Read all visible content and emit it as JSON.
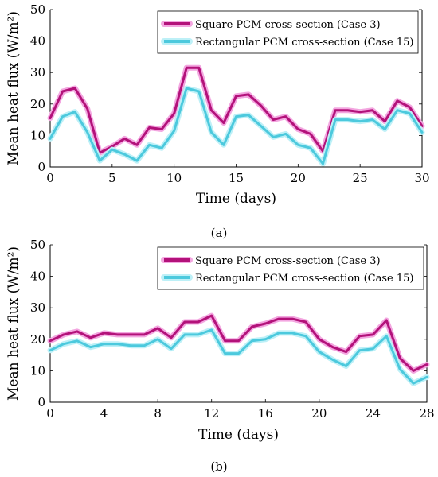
{
  "chart_data": [
    {
      "type": "line",
      "caption": "(a)",
      "xlabel": "Time (days)",
      "ylabel": "Mean heat flux (W/m²)",
      "xlim": [
        0,
        30
      ],
      "ylim": [
        0,
        50
      ],
      "xticks": [
        0,
        5,
        10,
        15,
        20,
        25,
        30
      ],
      "yticks": [
        0,
        10,
        20,
        30,
        40,
        50
      ],
      "legend_position": "top-right",
      "x": [
        0,
        1,
        2,
        3,
        4,
        5,
        6,
        7,
        8,
        9,
        10,
        11,
        12,
        13,
        14,
        15,
        16,
        17,
        18,
        19,
        20,
        21,
        22,
        23,
        24,
        25,
        26,
        27,
        28,
        29,
        30
      ],
      "series": [
        {
          "name": "Square PCM cross-section (Case 3)",
          "color": "#b3127a",
          "glow": "#f3a6e0",
          "values": [
            15.5,
            24,
            25,
            18.5,
            4.5,
            6.5,
            9,
            7,
            12.5,
            12,
            17,
            31.5,
            31.5,
            18,
            14,
            22.5,
            23,
            19.5,
            15,
            16,
            12,
            10.5,
            5,
            18,
            18,
            17.5,
            18,
            14.5,
            21,
            19,
            13
          ]
        },
        {
          "name": "Rectangular PCM cross-section (Case 15)",
          "color": "#4cc9dd",
          "glow": "#bdf0f7",
          "values": [
            9,
            16,
            17.5,
            11,
            2,
            5.5,
            4,
            2,
            7,
            6,
            11.5,
            25,
            24,
            11,
            7,
            16,
            16.5,
            13,
            9.5,
            10.5,
            7,
            6,
            1,
            15,
            15,
            14.5,
            15,
            12,
            18,
            17,
            11
          ]
        }
      ]
    },
    {
      "type": "line",
      "caption": "(b)",
      "xlabel": "Time (days)",
      "ylabel": "Mean heat flux (W/m²)",
      "xlim": [
        0,
        28
      ],
      "ylim": [
        0,
        50
      ],
      "xticks": [
        0,
        4,
        8,
        12,
        16,
        20,
        24,
        28
      ],
      "yticks": [
        0,
        10,
        20,
        30,
        40,
        50
      ],
      "legend_position": "top-right",
      "x": [
        0,
        1,
        2,
        3,
        4,
        5,
        6,
        7,
        8,
        9,
        10,
        11,
        12,
        13,
        14,
        15,
        16,
        17,
        18,
        19,
        20,
        21,
        22,
        23,
        24,
        25,
        26,
        27,
        28
      ],
      "series": [
        {
          "name": "Square PCM cross-section (Case 3)",
          "color": "#b3127a",
          "glow": "#f3a6e0",
          "values": [
            19.5,
            21.5,
            22.5,
            20.5,
            22,
            21.5,
            21.5,
            21.5,
            23.5,
            20.5,
            25.5,
            25.5,
            27.5,
            19.5,
            19.5,
            24,
            25,
            26.5,
            26.5,
            25.5,
            20,
            17.5,
            16,
            21,
            21.5,
            26,
            14,
            10,
            12
          ]
        },
        {
          "name": "Rectangular PCM cross-section (Case 15)",
          "color": "#4cc9dd",
          "glow": "#bdf0f7",
          "values": [
            16.5,
            18.5,
            19.5,
            17.5,
            18.5,
            18.5,
            18,
            18,
            20,
            17,
            21.5,
            21.5,
            23,
            15.5,
            15.5,
            19.5,
            20,
            22,
            22,
            21,
            16,
            13.5,
            11.5,
            16.5,
            17,
            21,
            10.5,
            6,
            8
          ]
        }
      ]
    }
  ]
}
